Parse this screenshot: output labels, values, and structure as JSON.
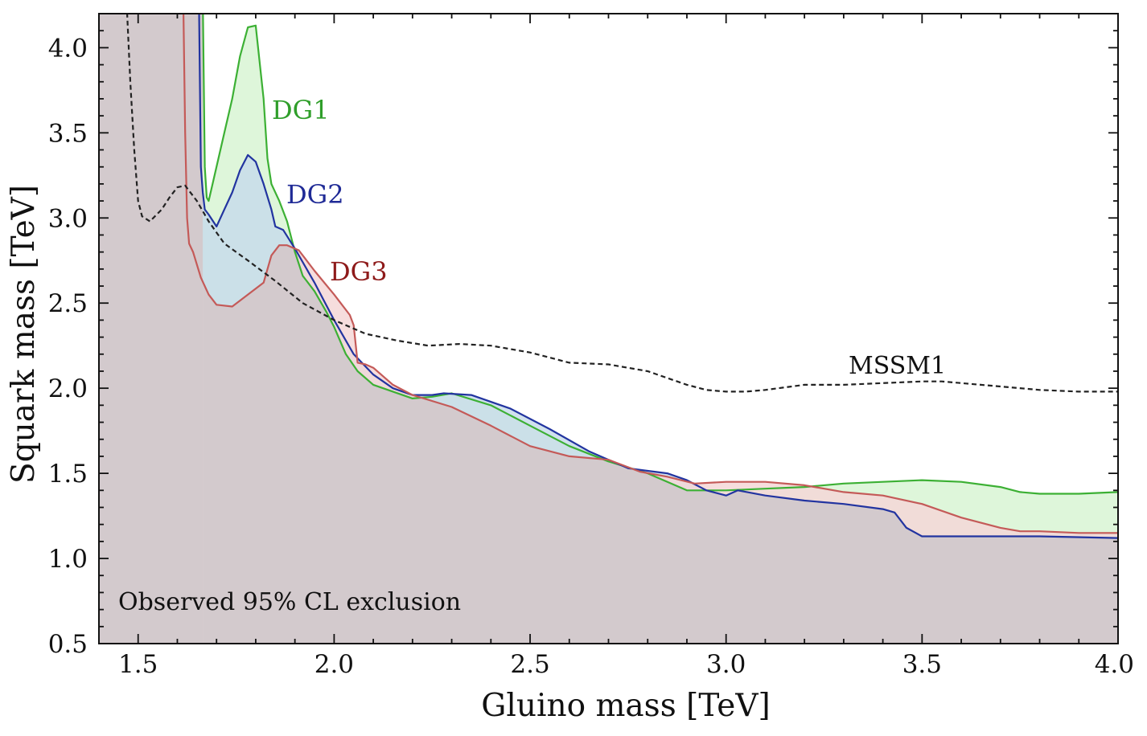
{
  "chart_data": {
    "type": "area",
    "xlabel": "Gluino mass [TeV]",
    "ylabel": "Squark mass [TeV]",
    "xlim": [
      1.4,
      4.0
    ],
    "ylim": [
      0.5,
      4.2
    ],
    "xticks": [
      1.5,
      2.0,
      2.5,
      3.0,
      3.5,
      4.0
    ],
    "xtick_labels": [
      "1.5",
      "2.0",
      "2.5",
      "3.0",
      "3.5",
      "4.0"
    ],
    "yticks": [
      0.5,
      1.0,
      1.5,
      2.0,
      2.5,
      3.0,
      3.5,
      4.0
    ],
    "ytick_labels": [
      "0.5",
      "1.0",
      "1.5",
      "2.0",
      "2.5",
      "3.0",
      "3.5",
      "4.0"
    ],
    "annotation": "Observed 95% CL exclusion",
    "series": [
      {
        "name": "DG1",
        "style": "filled",
        "color": "#3cb034",
        "fill": "#d8f5d4",
        "x": [
          1.665,
          1.67,
          1.675,
          1.68,
          1.69,
          1.72,
          1.74,
          1.76,
          1.78,
          1.8,
          1.82,
          1.83,
          1.84,
          1.86,
          1.88,
          1.9,
          1.92,
          1.95,
          1.98,
          2.0,
          2.03,
          2.06,
          2.1,
          2.15,
          2.2,
          2.25,
          2.3,
          2.4,
          2.5,
          2.6,
          2.7,
          2.8,
          2.9,
          3.0,
          3.1,
          3.2,
          3.3,
          3.4,
          3.5,
          3.6,
          3.7,
          3.75,
          3.8,
          3.9,
          4.0
        ],
        "y": [
          4.3,
          3.3,
          3.12,
          3.1,
          3.2,
          3.5,
          3.7,
          3.95,
          4.12,
          4.13,
          3.7,
          3.35,
          3.2,
          3.1,
          2.98,
          2.8,
          2.66,
          2.57,
          2.45,
          2.36,
          2.2,
          2.1,
          2.02,
          1.98,
          1.94,
          1.95,
          1.97,
          1.9,
          1.78,
          1.66,
          1.57,
          1.5,
          1.4,
          1.4,
          1.41,
          1.42,
          1.44,
          1.45,
          1.46,
          1.45,
          1.42,
          1.39,
          1.38,
          1.38,
          1.39
        ]
      },
      {
        "name": "DG2",
        "style": "filled",
        "color": "#2234a0",
        "fill": "#c8dcea",
        "x": [
          1.655,
          1.66,
          1.665,
          1.67,
          1.68,
          1.7,
          1.72,
          1.74,
          1.76,
          1.78,
          1.8,
          1.82,
          1.84,
          1.85,
          1.87,
          1.9,
          1.95,
          2.0,
          2.05,
          2.1,
          2.15,
          2.2,
          2.25,
          2.28,
          2.35,
          2.45,
          2.55,
          2.65,
          2.75,
          2.85,
          2.9,
          2.95,
          3.0,
          3.03,
          3.1,
          3.2,
          3.3,
          3.4,
          3.43,
          3.46,
          3.5,
          3.55,
          3.6,
          3.8,
          4.0
        ],
        "y": [
          4.3,
          3.3,
          3.15,
          3.05,
          3.02,
          2.95,
          3.05,
          3.15,
          3.28,
          3.37,
          3.33,
          3.2,
          3.05,
          2.95,
          2.93,
          2.82,
          2.62,
          2.4,
          2.2,
          2.08,
          2.0,
          1.96,
          1.96,
          1.97,
          1.96,
          1.88,
          1.76,
          1.63,
          1.53,
          1.5,
          1.46,
          1.4,
          1.37,
          1.4,
          1.37,
          1.34,
          1.32,
          1.29,
          1.27,
          1.18,
          1.13,
          1.13,
          1.13,
          1.13,
          1.12
        ]
      },
      {
        "name": "DG3",
        "style": "filled",
        "color": "#c45a58",
        "fill": "#f5d7d7",
        "x": [
          1.615,
          1.62,
          1.625,
          1.63,
          1.64,
          1.66,
          1.68,
          1.7,
          1.74,
          1.78,
          1.82,
          1.84,
          1.86,
          1.88,
          1.91,
          1.95,
          2.0,
          2.04,
          2.05,
          2.06,
          2.08,
          2.1,
          2.15,
          2.2,
          2.3,
          2.4,
          2.5,
          2.6,
          2.7,
          2.78,
          2.85,
          2.92,
          3.0,
          3.1,
          3.2,
          3.3,
          3.4,
          3.5,
          3.6,
          3.7,
          3.75,
          3.8,
          3.9,
          4.0
        ],
        "y": [
          4.3,
          3.5,
          3.0,
          2.85,
          2.8,
          2.65,
          2.55,
          2.49,
          2.48,
          2.55,
          2.62,
          2.78,
          2.84,
          2.84,
          2.81,
          2.69,
          2.55,
          2.43,
          2.37,
          2.15,
          2.14,
          2.12,
          2.02,
          1.96,
          1.89,
          1.78,
          1.66,
          1.6,
          1.58,
          1.51,
          1.48,
          1.44,
          1.45,
          1.45,
          1.43,
          1.39,
          1.37,
          1.32,
          1.24,
          1.18,
          1.16,
          1.16,
          1.15,
          1.15
        ]
      },
      {
        "name": "MSSM1",
        "style": "dashed",
        "color": "#222222",
        "x": [
          1.47,
          1.48,
          1.49,
          1.5,
          1.51,
          1.53,
          1.56,
          1.58,
          1.6,
          1.62,
          1.65,
          1.68,
          1.72,
          1.78,
          1.85,
          1.92,
          2.0,
          2.08,
          2.16,
          2.24,
          2.32,
          2.4,
          2.5,
          2.6,
          2.7,
          2.8,
          2.9,
          2.95,
          3.0,
          3.05,
          3.1,
          3.2,
          3.3,
          3.4,
          3.5,
          3.55,
          3.6,
          3.7,
          3.8,
          3.9,
          4.0
        ],
        "y": [
          4.3,
          3.8,
          3.4,
          3.1,
          3.01,
          2.98,
          3.05,
          3.12,
          3.18,
          3.19,
          3.1,
          2.98,
          2.85,
          2.75,
          2.63,
          2.5,
          2.4,
          2.32,
          2.28,
          2.25,
          2.26,
          2.25,
          2.21,
          2.15,
          2.14,
          2.1,
          2.02,
          1.99,
          1.98,
          1.98,
          1.99,
          2.02,
          2.02,
          2.03,
          2.04,
          2.04,
          2.03,
          2.01,
          1.99,
          1.98,
          1.98
        ]
      }
    ]
  }
}
